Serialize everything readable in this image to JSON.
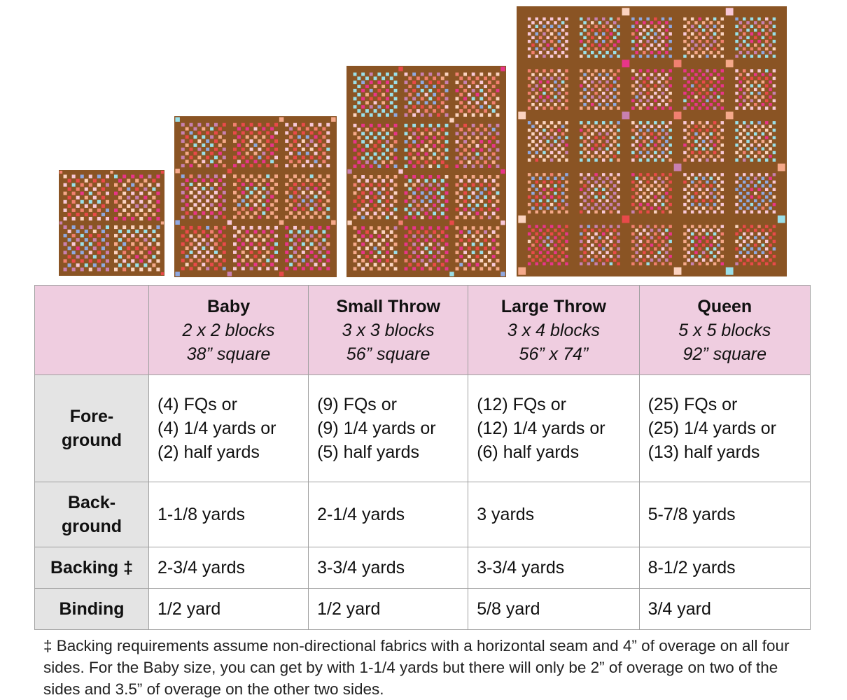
{
  "quilts": [
    {
      "name": "Baby",
      "cols": 2,
      "rows": 2
    },
    {
      "name": "Small Throw",
      "cols": 3,
      "rows": 3
    },
    {
      "name": "Large Throw",
      "cols": 3,
      "rows": 4
    },
    {
      "name": "Queen",
      "cols": 5,
      "rows": 5
    }
  ],
  "colors": {
    "sashing": "#8a5424",
    "header_bg": "#efcde0",
    "row_header_bg": "#e4e4e4",
    "palette": [
      "#e8358a",
      "#f8c8d8",
      "#f5a98a",
      "#8fa8e0",
      "#e84a4a",
      "#f08070",
      "#9adfe8",
      "#c880b0",
      "#fbd3c0"
    ]
  },
  "table": {
    "columns": [
      {
        "title": "Baby",
        "blocks": "2 x 2 blocks",
        "size": "38” square"
      },
      {
        "title": "Small Throw",
        "blocks": "3 x 3 blocks",
        "size": "56” square"
      },
      {
        "title": "Large Throw",
        "blocks": "3 x 4 blocks",
        "size": "56” x 74”"
      },
      {
        "title": "Queen",
        "blocks": "5 x 5 blocks",
        "size": "92” square"
      }
    ],
    "rows": [
      {
        "label1": "Fore-",
        "label2": "ground",
        "cells": [
          [
            "(4) FQs or",
            "(4) 1/4 yards or",
            "(2) half yards"
          ],
          [
            "(9) FQs or",
            "(9) 1/4 yards or",
            "(5) half yards"
          ],
          [
            "(12) FQs or",
            "(12) 1/4 yards or",
            "(6) half yards"
          ],
          [
            "(25) FQs or",
            "(25) 1/4 yards or",
            "(13) half yards"
          ]
        ]
      },
      {
        "label1": "Back-",
        "label2": "ground",
        "cells": [
          "1-1/8 yards",
          "2-1/4 yards",
          "3 yards",
          "5-7/8 yards"
        ]
      },
      {
        "label1": "Backing ‡",
        "cells": [
          "2-3/4 yards",
          "3-3/4 yards",
          "3-3/4 yards",
          "8-1/2 yards"
        ]
      },
      {
        "label1": "Binding",
        "cells": [
          "1/2 yard",
          "1/2 yard",
          "5/8 yard",
          "3/4 yard"
        ]
      }
    ]
  },
  "footnote": "‡ Backing requirements assume non-directional fabrics with a horizontal seam and 4” of overage on all four sides. For the Baby size, you can get by with 1-1/4 yards but there will only be 2” of overage on two of the sides and 3.5” of overage on the other two sides."
}
